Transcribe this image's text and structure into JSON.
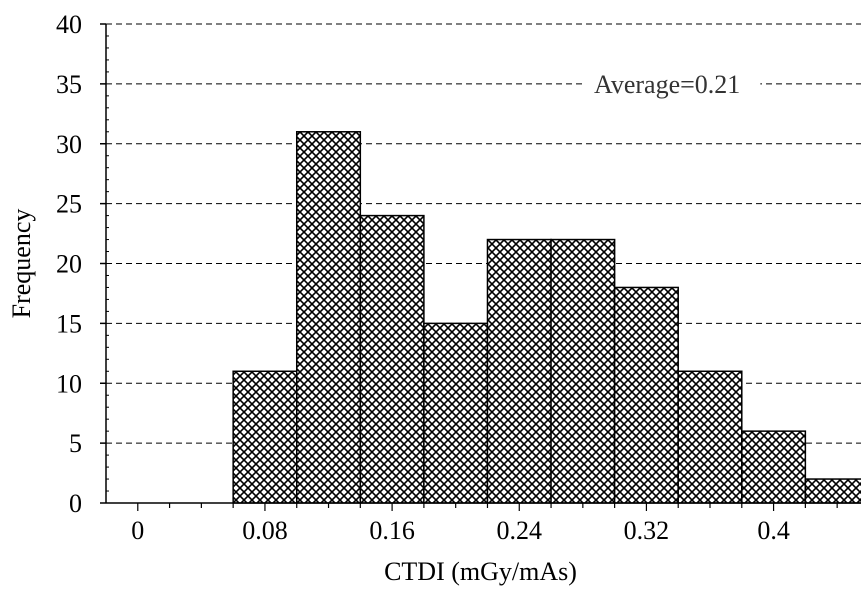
{
  "chart_data": {
    "type": "bar",
    "subtype": "histogram",
    "xlabel": "CTDI (mGy/mAs)",
    "ylabel": "Frequency",
    "annotation": "Average=0.21",
    "ylim": [
      0,
      40
    ],
    "y_ticks": [
      0,
      5,
      10,
      15,
      20,
      25,
      30,
      35,
      40
    ],
    "y_tick_labels": [
      "0",
      "5",
      "10",
      "15",
      "20",
      "25",
      "30",
      "35",
      "40"
    ],
    "x_tick_labels": [
      "0",
      "0.08",
      "0.16",
      "0.24",
      "0.32",
      "0.4"
    ],
    "x_tick_values": [
      0,
      0.08,
      0.16,
      0.24,
      0.32,
      0.4
    ],
    "bin_width": 0.04,
    "bin_edges": [
      -0.02,
      0.02,
      0.06,
      0.1,
      0.14,
      0.18,
      0.22,
      0.26,
      0.3,
      0.34,
      0.38,
      0.42,
      0.46
    ],
    "values": [
      0,
      0,
      11,
      31,
      24,
      15,
      22,
      22,
      18,
      11,
      6,
      2
    ],
    "grid": "horizontal-dashed",
    "fill_pattern": "crosshatch",
    "colors": {
      "bar_fill": "#ffffff",
      "hatch": "#000000",
      "outline": "#000000",
      "grid": "#000000"
    }
  }
}
